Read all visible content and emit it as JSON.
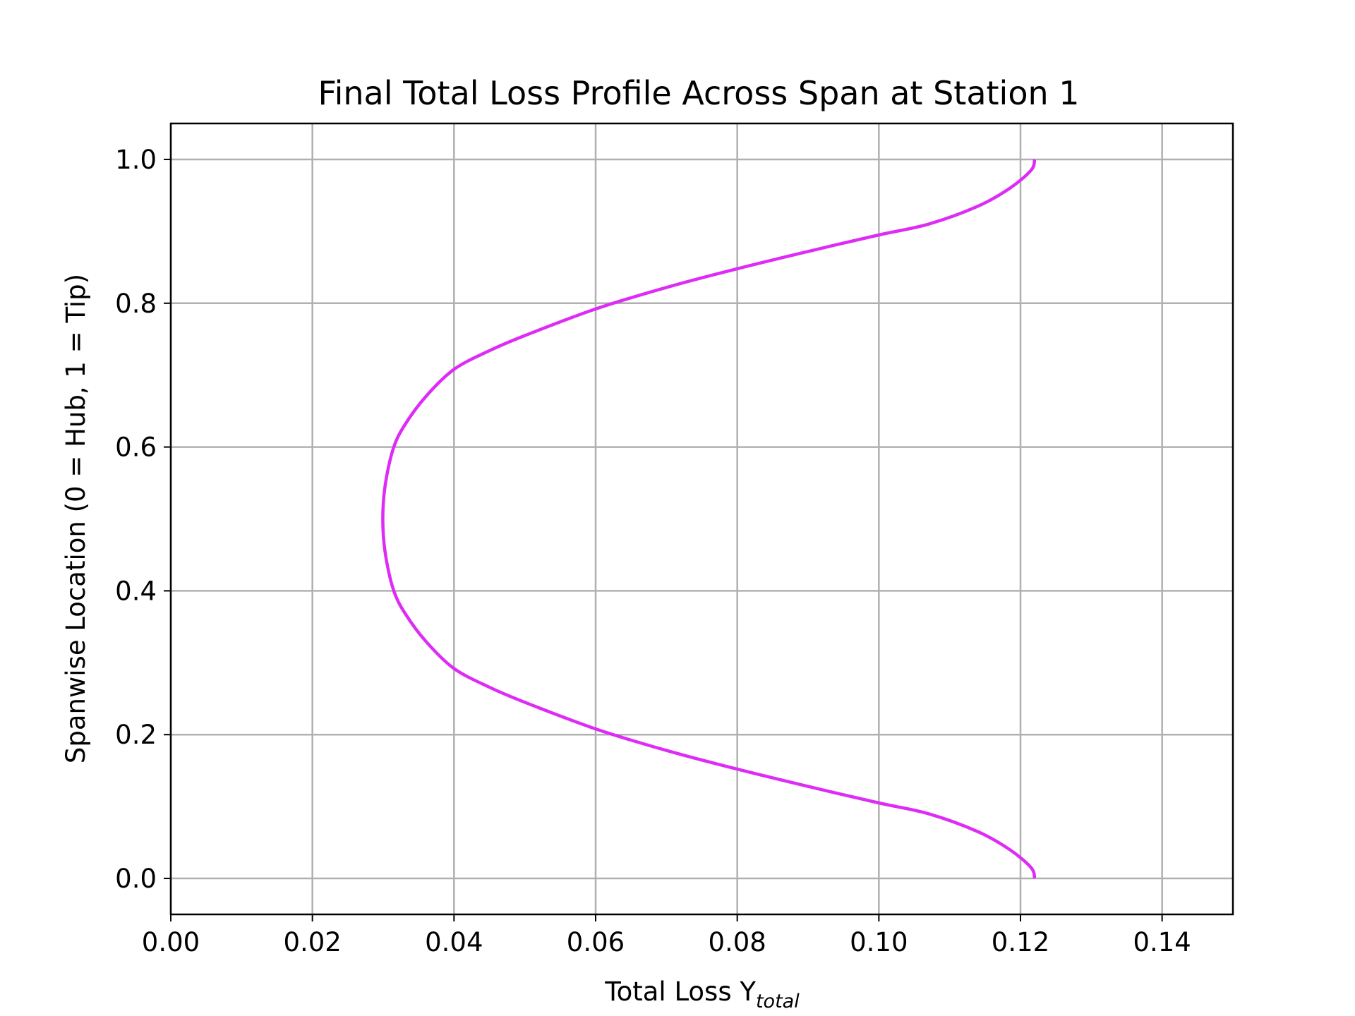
{
  "chart_data": {
    "type": "line",
    "title": "Final Total Loss Profile Across Span at Station 1",
    "xlabel": {
      "base": "Total Loss Y",
      "subscript": "total"
    },
    "ylabel": "Spanwise Location (0 = Hub, 1 = Tip)",
    "xlim": [
      0.0,
      0.15
    ],
    "ylim": [
      -0.05,
      1.05
    ],
    "xticks": [
      0.0,
      0.02,
      0.04,
      0.06,
      0.08,
      0.1,
      0.12,
      0.14
    ],
    "xtick_labels": [
      "0.00",
      "0.02",
      "0.04",
      "0.06",
      "0.08",
      "0.10",
      "0.12",
      "0.14"
    ],
    "yticks": [
      0.0,
      0.2,
      0.4,
      0.6,
      0.8,
      1.0
    ],
    "ytick_labels": [
      "0.0",
      "0.2",
      "0.4",
      "0.6",
      "0.8",
      "1.0"
    ],
    "grid": true,
    "legend": false,
    "series": [
      {
        "color": "#dd2cf5",
        "x": [
          0.122,
          0.1215,
          0.1185,
          0.114,
          0.107,
          0.1,
          0.09,
          0.08,
          0.07,
          0.06,
          0.05,
          0.045,
          0.04,
          0.036,
          0.033,
          0.0315,
          0.0305,
          0.03,
          0.03,
          0.0305,
          0.0315,
          0.033,
          0.036,
          0.04,
          0.045,
          0.05,
          0.06,
          0.07,
          0.08,
          0.09,
          0.1,
          0.107,
          0.114,
          0.1185,
          0.1215,
          0.122
        ],
        "y": [
          0.0,
          0.015,
          0.04,
          0.065,
          0.09,
          0.105,
          0.128,
          0.152,
          0.178,
          0.208,
          0.245,
          0.266,
          0.292,
          0.33,
          0.37,
          0.4,
          0.44,
          0.48,
          0.52,
          0.56,
          0.6,
          0.63,
          0.67,
          0.708,
          0.734,
          0.755,
          0.792,
          0.822,
          0.848,
          0.872,
          0.895,
          0.91,
          0.935,
          0.96,
          0.985,
          1.0
        ]
      }
    ]
  }
}
